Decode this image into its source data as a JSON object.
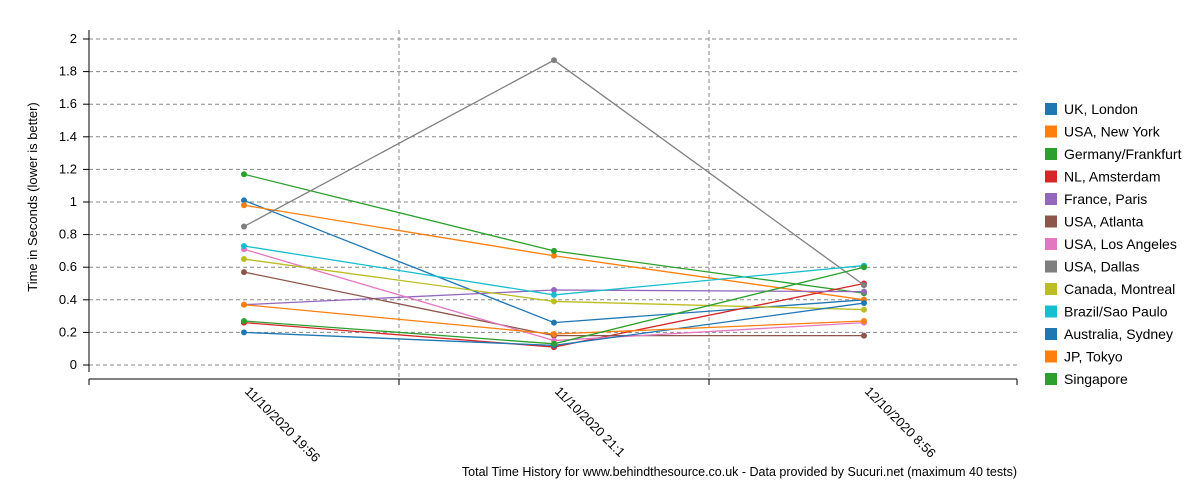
{
  "chart_data": {
    "type": "line",
    "x": [
      "11/10/2020 19:56",
      "11/10/2020 21:1",
      "12/10/2020 8:56"
    ],
    "ylabel": "Time in Seconds (lower is better)",
    "xlabel": "",
    "caption": "Total Time History for www.behindthesource.co.uk - Data provided by Sucuri.net (maximum 40 tests)",
    "ylim": [
      0,
      2
    ],
    "yticks": [
      "0",
      "0.2",
      "0.4",
      "0.6",
      "0.8",
      "1",
      "1.2",
      "1.4",
      "1.6",
      "1.8",
      "2"
    ],
    "grid": true,
    "legend_position": "right",
    "series": [
      {
        "name": "UK, London",
        "color": "#1f77b4",
        "values": [
          1.01,
          0.26,
          0.4
        ]
      },
      {
        "name": "USA, New York",
        "color": "#ff7f0e",
        "values": [
          0.98,
          0.67,
          0.4
        ]
      },
      {
        "name": "Germany/Frankfurt",
        "color": "#2ca02c",
        "values": [
          1.17,
          0.7,
          0.44
        ]
      },
      {
        "name": "NL, Amsterdam",
        "color": "#d62728",
        "values": [
          0.26,
          0.11,
          0.5
        ]
      },
      {
        "name": "France, Paris",
        "color": "#9467bd",
        "values": [
          0.37,
          0.46,
          0.45
        ]
      },
      {
        "name": "USA, Atlanta",
        "color": "#8c564b",
        "values": [
          0.57,
          0.18,
          0.18
        ]
      },
      {
        "name": "USA, Los Angeles",
        "color": "#e377c2",
        "values": [
          0.71,
          0.15,
          0.26
        ]
      },
      {
        "name": "USA, Dallas",
        "color": "#7f7f7f",
        "values": [
          0.85,
          1.87,
          0.49
        ]
      },
      {
        "name": "Canada, Montreal",
        "color": "#bcbd22",
        "values": [
          0.65,
          0.39,
          0.34
        ]
      },
      {
        "name": "Brazil/Sao Paulo",
        "color": "#17becf",
        "values": [
          0.73,
          0.43,
          0.61
        ]
      },
      {
        "name": "Australia, Sydney",
        "color": "#1f77b4",
        "values": [
          0.2,
          0.12,
          0.38
        ]
      },
      {
        "name": "JP, Tokyo",
        "color": "#ff7f0e",
        "values": [
          0.37,
          0.19,
          0.27
        ]
      },
      {
        "name": "Singapore",
        "color": "#2ca02c",
        "values": [
          0.27,
          0.13,
          0.6
        ]
      }
    ]
  }
}
